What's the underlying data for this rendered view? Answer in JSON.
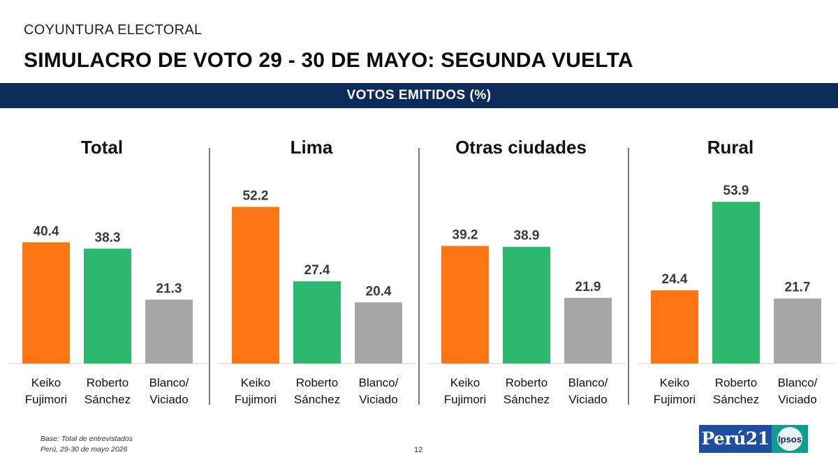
{
  "kicker": "COYUNTURA ELECTORAL",
  "title": "SIMULACRO DE VOTO 29 - 30 DE MAYO: SEGUNDA VUELTA",
  "subtitle": "VOTOS EMITIDOS (%)",
  "footnote": {
    "base": "Base: Total de entrevistados",
    "place_date": "Perú, 29-30 de mayo 2026"
  },
  "page_number": "12",
  "logos": {
    "peru21": "Perú21",
    "ipsos": "Ipsos"
  },
  "colors": {
    "Keiko Fujimori": "#ff7413",
    "Roberto Sánchez": "#2db870",
    "Blanco/ Viciado": "#a6a6a6",
    "band": "#0d2a5c"
  },
  "chart_data": [
    {
      "type": "bar",
      "title": "Total",
      "categories": [
        "Keiko Fujimori",
        "Roberto Sánchez",
        "Blanco/ Viciado"
      ],
      "category_lines": [
        [
          "Keiko",
          "Fujimori"
        ],
        [
          "Roberto",
          "Sánchez"
        ],
        [
          "Blanco/",
          "Viciado"
        ]
      ],
      "values": [
        40.4,
        38.3,
        21.3
      ],
      "value_labels": [
        "40.4",
        "38.3",
        "21.3"
      ]
    },
    {
      "type": "bar",
      "title": "Lima",
      "categories": [
        "Keiko Fujimori",
        "Roberto Sánchez",
        "Blanco/ Viciado"
      ],
      "category_lines": [
        [
          "Keiko",
          "Fujimori"
        ],
        [
          "Roberto",
          "Sánchez"
        ],
        [
          "Blanco/",
          "Viciado"
        ]
      ],
      "values": [
        52.2,
        27.4,
        20.4
      ],
      "value_labels": [
        "52.2",
        "27.4",
        "20.4"
      ]
    },
    {
      "type": "bar",
      "title": "Otras ciudades",
      "categories": [
        "Keiko Fujimori",
        "Roberto Sánchez",
        "Blanco/ Viciado"
      ],
      "category_lines": [
        [
          "Keiko",
          "Fujimori"
        ],
        [
          "Roberto",
          "Sánchez"
        ],
        [
          "Blanco/",
          "Viciado"
        ]
      ],
      "values": [
        39.2,
        38.9,
        21.9
      ],
      "value_labels": [
        "39.2",
        "38.9",
        "21.9"
      ]
    },
    {
      "type": "bar",
      "title": "Rural",
      "categories": [
        "Keiko Fujimori",
        "Roberto Sánchez",
        "Blanco/ Viciado"
      ],
      "category_lines": [
        [
          "Keiko",
          "Fujimori"
        ],
        [
          "Roberto",
          "Sánchez"
        ],
        [
          "Blanco/",
          "Viciado"
        ]
      ],
      "values": [
        24.4,
        53.9,
        21.7
      ],
      "value_labels": [
        "24.4",
        "53.9",
        "21.7"
      ]
    }
  ]
}
